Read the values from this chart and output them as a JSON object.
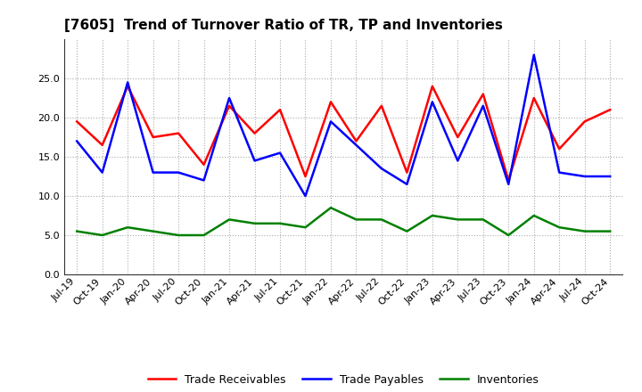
{
  "title": "[7605]  Trend of Turnover Ratio of TR, TP and Inventories",
  "labels": [
    "Jul-19",
    "Oct-19",
    "Jan-20",
    "Apr-20",
    "Jul-20",
    "Oct-20",
    "Jan-21",
    "Apr-21",
    "Jul-21",
    "Oct-21",
    "Jan-22",
    "Apr-22",
    "Jul-22",
    "Oct-22",
    "Jan-23",
    "Apr-23",
    "Jul-23",
    "Oct-23",
    "Jan-24",
    "Apr-24",
    "Jul-24",
    "Oct-24"
  ],
  "trade_receivables": [
    19.5,
    16.5,
    24.0,
    17.5,
    18.0,
    14.0,
    21.5,
    18.0,
    21.0,
    12.5,
    22.0,
    17.0,
    21.5,
    13.0,
    24.0,
    17.5,
    23.0,
    12.0,
    22.5,
    16.0,
    19.5,
    21.0
  ],
  "trade_payables": [
    17.0,
    13.0,
    24.5,
    13.0,
    13.0,
    12.0,
    22.5,
    14.5,
    15.5,
    10.0,
    19.5,
    16.5,
    13.5,
    11.5,
    22.0,
    14.5,
    21.5,
    11.5,
    28.0,
    13.0,
    12.5,
    12.5
  ],
  "inventories": [
    5.5,
    5.0,
    6.0,
    5.5,
    5.0,
    5.0,
    7.0,
    6.5,
    6.5,
    6.0,
    8.5,
    7.0,
    7.0,
    5.5,
    7.5,
    7.0,
    7.0,
    5.0,
    7.5,
    6.0,
    5.5,
    5.5
  ],
  "tr_color": "#FF0000",
  "tp_color": "#0000FF",
  "inv_color": "#008000",
  "ylim": [
    0,
    30
  ],
  "yticks": [
    0.0,
    5.0,
    10.0,
    15.0,
    20.0,
    25.0
  ],
  "legend_labels": [
    "Trade Receivables",
    "Trade Payables",
    "Inventories"
  ],
  "background_color": "#FFFFFF",
  "grid_color": "#AAAAAA",
  "title_fontsize": 11,
  "tick_fontsize": 8,
  "legend_fontsize": 9
}
